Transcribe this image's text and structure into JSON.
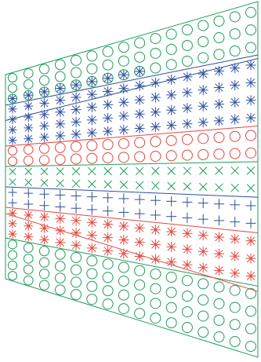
{
  "diagram": {
    "columns": 16,
    "rows_per_column": 20,
    "colors": {
      "green": "#1f9e5a",
      "blue": "#2d4f9e",
      "red": "#e2483f"
    },
    "bands": [
      {
        "name": "top-circles",
        "marker": "circle",
        "color": "green",
        "rows": [
          0,
          1,
          2
        ]
      },
      {
        "name": "upper-asterisks",
        "marker": "asterisk",
        "color": "blue",
        "rows": [
          3,
          4,
          5,
          6
        ]
      },
      {
        "name": "upper-circles",
        "marker": "circle",
        "color": "red",
        "rows": [
          7,
          8
        ]
      },
      {
        "name": "crosses",
        "marker": "x",
        "color": "green",
        "rows": [
          9,
          10
        ]
      },
      {
        "name": "pluses",
        "marker": "plus",
        "color": "blue",
        "rows": [
          11,
          12
        ]
      },
      {
        "name": "lower-asterisks",
        "marker": "asterisk",
        "color": "red",
        "rows": [
          13,
          14,
          15
        ]
      },
      {
        "name": "bottom-circles",
        "marker": "circle",
        "color": "green",
        "rows": [
          16,
          17,
          18,
          19
        ]
      }
    ]
  }
}
